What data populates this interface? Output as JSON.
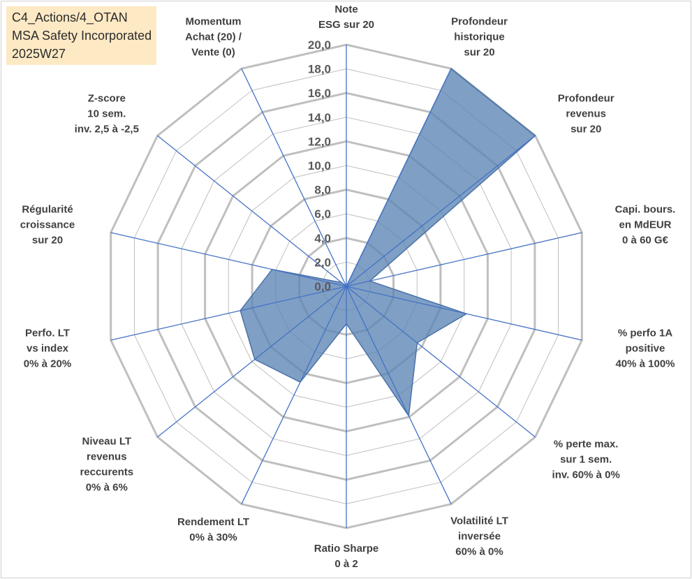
{
  "header": {
    "title_lines": [
      "C4_Actions/4_OTAN",
      "MSA Safety Incorporated",
      "2025W27"
    ]
  },
  "colors": {
    "title_background": "#fde9c4",
    "grid": "#bfbfbf",
    "spoke": "#4472c4",
    "series_fill": "#5b84b5",
    "series_stroke": "#4a72a8"
  },
  "chart_data": {
    "type": "radar",
    "title": "",
    "rmin": 0,
    "rmax": 20,
    "tick_step": 2,
    "tick_labels": [
      "0,0",
      "2,0",
      "4,0",
      "6,0",
      "8,0",
      "10,0",
      "12,0",
      "14,0",
      "16,0",
      "18,0",
      "20,0"
    ],
    "grid": true,
    "legend": "none",
    "axes": [
      {
        "label_lines": [
          "Note",
          "ESG sur 20"
        ]
      },
      {
        "label_lines": [
          "Profondeur",
          "historique",
          "sur 20"
        ]
      },
      {
        "label_lines": [
          "Profondeur",
          "revenus",
          "sur 20"
        ]
      },
      {
        "label_lines": [
          "Capi. bours.",
          "en MdEUR",
          "0 à 60 G€"
        ]
      },
      {
        "label_lines": [
          "% perfo 1A",
          "positive",
          "40% à 100%"
        ]
      },
      {
        "label_lines": [
          "% perte max.",
          "sur 1 sem.",
          "inv. 60% à 0%"
        ]
      },
      {
        "label_lines": [
          "Volatilité LT",
          "inversée",
          "60% à 0%"
        ]
      },
      {
        "label_lines": [
          "Ratio Sharpe",
          "0 à 2"
        ]
      },
      {
        "label_lines": [
          "Rendement LT",
          "0% à 30%"
        ]
      },
      {
        "label_lines": [
          "Niveau LT",
          "revenus",
          "reccurents",
          "0% à 6%"
        ]
      },
      {
        "label_lines": [
          "Perfo. LT",
          "vs index",
          "0% à 20%"
        ]
      },
      {
        "label_lines": [
          "Régularité",
          "croissance",
          "sur 20"
        ]
      },
      {
        "label_lines": [
          "Z-score",
          "10 sem.",
          "inv. 2,5 à -2,5"
        ]
      },
      {
        "label_lines": [
          "Momentum",
          "Achat (20) /",
          "Vente (0)"
        ]
      }
    ],
    "series": [
      {
        "values": [
          0,
          20,
          20,
          2,
          10.2,
          7.5,
          11.9,
          3.1,
          8.8,
          9.7,
          9.0,
          6.3,
          0.5,
          0
        ]
      }
    ]
  }
}
